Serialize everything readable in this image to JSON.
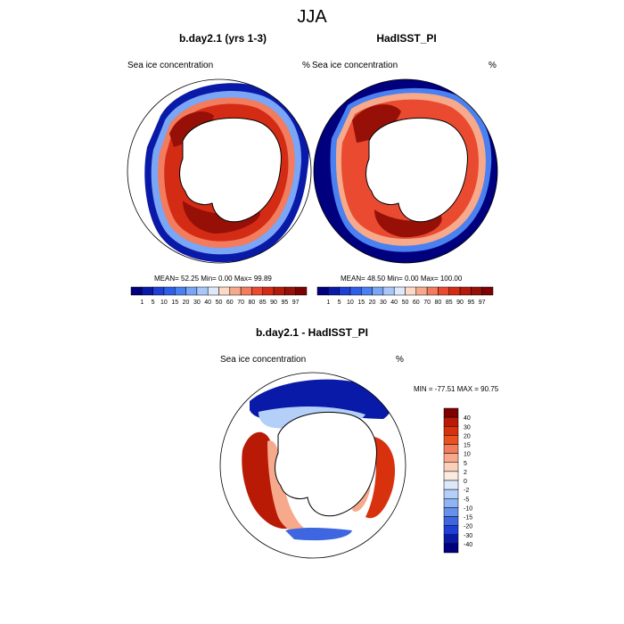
{
  "title": "JJA",
  "panels": [
    {
      "title": "b.day2.1 (yrs 1-3)",
      "left_label": "Sea ice concentration",
      "right_label": "%",
      "stats": "MEAN=  52.25  Min=   0.00  Max=  99.89"
    },
    {
      "title": "HadISST_PI",
      "left_label": "Sea ice concentration",
      "right_label": "%",
      "stats": "MEAN=  48.50  Min=   0.00  Max= 100.00"
    }
  ],
  "conc_colorbar": {
    "labels": [
      "1",
      "5",
      "10",
      "15",
      "20",
      "30",
      "40",
      "50",
      "60",
      "70",
      "80",
      "85",
      "90",
      "95",
      "97"
    ],
    "colors": [
      "#00007f",
      "#0a1aa8",
      "#1f3fd6",
      "#2f5fe8",
      "#4a80f0",
      "#7aa6f5",
      "#a9c8f8",
      "#dde9fb",
      "#fbd9c6",
      "#f7a98c",
      "#f27c5d",
      "#ea4b30",
      "#d42b15",
      "#b41a0a",
      "#961007",
      "#7f0000"
    ]
  },
  "diff_panel": {
    "title": "b.day2.1 - HadISST_PI",
    "left_label": "Sea ice concentration",
    "right_label": "%",
    "stats": "MIN = -77.51 MAX =  90.75"
  },
  "diff_colorbar": {
    "labels": [
      "40",
      "30",
      "20",
      "15",
      "10",
      "5",
      "2",
      "0",
      "-2",
      "-5",
      "-10",
      "-15",
      "-20",
      "-30",
      "-40"
    ],
    "colors": [
      "#7f0000",
      "#b81a06",
      "#d8310d",
      "#e8521e",
      "#f27c5d",
      "#f7a98c",
      "#fbd0ba",
      "#fcebe1",
      "#dde9fb",
      "#b4cff8",
      "#8fb4f3",
      "#6690ec",
      "#3d66e0",
      "#1f3fd6",
      "#0a1aa8",
      "#00007f"
    ]
  }
}
